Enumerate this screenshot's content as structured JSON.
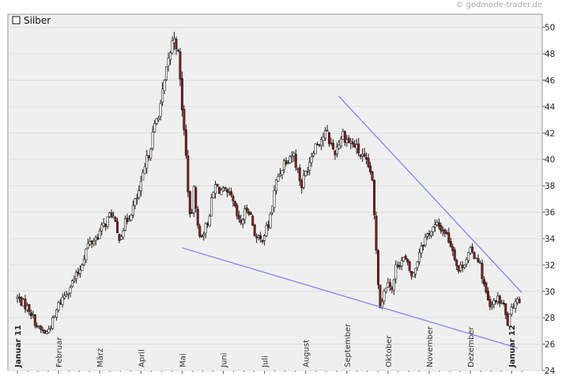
{
  "watermark": "© godmode-trader.de",
  "colors": {
    "up_candle": "#ffffff",
    "down_candle": "#8b1a1a",
    "wick": "#1a1a1a",
    "trendline": "#7b7bff",
    "plot_background": "#efefef",
    "grid": "#dcdcdc"
  },
  "chart_data": {
    "type": "candlestick",
    "legend": "Silber",
    "legend_position": "top-left",
    "y_axis_position": "right",
    "ylim": [
      24,
      51
    ],
    "y_ticks": [
      24,
      26,
      28,
      30,
      32,
      34,
      36,
      38,
      40,
      42,
      44,
      46,
      48,
      50
    ],
    "grid": true,
    "month_labels": [
      {
        "label": "Januar 11",
        "month_index": 0,
        "bold": true
      },
      {
        "label": "Februar",
        "month_index": 1,
        "bold": false
      },
      {
        "label": "März",
        "month_index": 2,
        "bold": false
      },
      {
        "label": "April",
        "month_index": 3,
        "bold": false
      },
      {
        "label": "Mai",
        "month_index": 4,
        "bold": false
      },
      {
        "label": "Juni",
        "month_index": 5,
        "bold": false
      },
      {
        "label": "Juli",
        "month_index": 6,
        "bold": false
      },
      {
        "label": "August",
        "month_index": 7,
        "bold": false
      },
      {
        "label": "September",
        "month_index": 8,
        "bold": false
      },
      {
        "label": "Oktober",
        "month_index": 9,
        "bold": false
      },
      {
        "label": "November",
        "month_index": 10,
        "bold": false
      },
      {
        "label": "Dezember",
        "month_index": 11,
        "bold": false
      },
      {
        "label": "Januar 12",
        "month_index": 12,
        "bold": true
      }
    ],
    "close_anchors": [
      [
        0.0,
        29.5
      ],
      [
        0.3,
        28.6
      ],
      [
        0.5,
        27.2
      ],
      [
        0.7,
        26.8
      ],
      [
        0.9,
        28.0
      ],
      [
        1.0,
        29.0
      ],
      [
        1.3,
        30.5
      ],
      [
        1.5,
        31.5
      ],
      [
        1.7,
        33.5
      ],
      [
        1.9,
        34.0
      ],
      [
        2.0,
        34.5
      ],
      [
        2.3,
        36.0
      ],
      [
        2.45,
        34.0
      ],
      [
        2.6,
        35.0
      ],
      [
        2.9,
        37.0
      ],
      [
        3.0,
        38.0
      ],
      [
        3.3,
        42.0
      ],
      [
        3.5,
        44.5
      ],
      [
        3.7,
        48.0
      ],
      [
        3.82,
        49.5
      ],
      [
        3.9,
        48.0
      ],
      [
        4.0,
        44.0
      ],
      [
        4.1,
        40.0
      ],
      [
        4.2,
        35.0
      ],
      [
        4.3,
        38.0
      ],
      [
        4.4,
        34.0
      ],
      [
        4.6,
        35.0
      ],
      [
        4.8,
        38.0
      ],
      [
        5.0,
        37.5
      ],
      [
        5.2,
        37.0
      ],
      [
        5.4,
        35.0
      ],
      [
        5.6,
        36.5
      ],
      [
        5.8,
        34.0
      ],
      [
        5.9,
        33.8
      ],
      [
        6.1,
        35.0
      ],
      [
        6.3,
        38.5
      ],
      [
        6.5,
        40.0
      ],
      [
        6.7,
        40.5
      ],
      [
        6.9,
        38.0
      ],
      [
        7.0,
        39.0
      ],
      [
        7.2,
        41.0
      ],
      [
        7.5,
        42.0
      ],
      [
        7.7,
        40.5
      ],
      [
        7.9,
        42.0
      ],
      [
        8.0,
        41.5
      ],
      [
        8.2,
        41.0
      ],
      [
        8.4,
        40.0
      ],
      [
        8.6,
        39.0
      ],
      [
        8.7,
        34.0
      ],
      [
        8.8,
        28.8
      ],
      [
        9.0,
        31.0
      ],
      [
        9.1,
        30.0
      ],
      [
        9.2,
        32.0
      ],
      [
        9.4,
        32.5
      ],
      [
        9.6,
        31.0
      ],
      [
        9.8,
        33.5
      ],
      [
        10.0,
        34.5
      ],
      [
        10.2,
        35.0
      ],
      [
        10.4,
        34.5
      ],
      [
        10.6,
        33.0
      ],
      [
        10.7,
        31.5
      ],
      [
        10.9,
        32.5
      ],
      [
        11.0,
        33.0
      ],
      [
        11.2,
        32.5
      ],
      [
        11.3,
        31.0
      ],
      [
        11.4,
        29.5
      ],
      [
        11.5,
        28.5
      ],
      [
        11.6,
        29.5
      ],
      [
        11.8,
        29.0
      ],
      [
        11.9,
        27.5
      ],
      [
        12.0,
        28.5
      ],
      [
        12.1,
        29.5
      ],
      [
        12.2,
        29.3
      ]
    ],
    "trendlines": [
      {
        "from": {
          "month": 4.0,
          "value": 33.3
        },
        "to": {
          "month": 12.15,
          "value": 25.7
        }
      },
      {
        "from": {
          "month": 7.8,
          "value": 44.8
        },
        "to": {
          "month": 12.25,
          "value": 29.9
        }
      }
    ]
  }
}
